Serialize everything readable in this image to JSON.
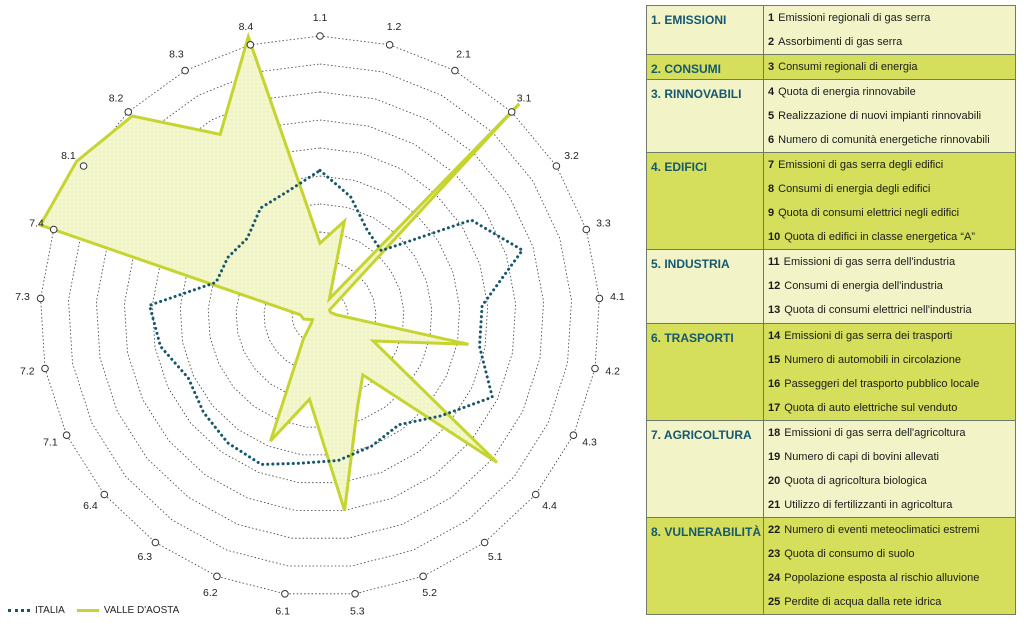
{
  "chart_data": {
    "type": "radar",
    "axes": [
      "1.1",
      "1.2",
      "2.1",
      "3.1",
      "3.2",
      "3.3",
      "4.1",
      "4.2",
      "4.3",
      "4.4",
      "5.1",
      "5.2",
      "5.3",
      "6.1",
      "6.2",
      "6.3",
      "6.4",
      "7.1",
      "7.2",
      "7.3",
      "7.4",
      "8.1",
      "8.2",
      "8.3",
      "8.4"
    ],
    "rings": 10,
    "series": [
      {
        "name": "ITALIA",
        "style": "dotted",
        "color": "#17566b",
        "values": [
          5.2,
          4.4,
          3.5,
          3.2,
          6.4,
          7.6,
          5.8,
          5.8,
          6.8,
          5.6,
          4.8,
          5.0,
          5.2,
          5.3,
          5.7,
          5.6,
          5.4,
          5.2,
          5.8,
          6.1,
          3.9,
          3.9,
          3.8,
          4.4,
          4.6
        ]
      },
      {
        "name": "VALLE D'AOSTA",
        "style": "solid",
        "color": "#c6d431",
        "values": [
          2.6,
          3.5,
          0.7,
          10.4,
          0.4,
          0.4,
          0.6,
          5.4,
          2.1,
          8.2,
          2.6,
          3.6,
          7.0,
          3.0,
          4.8,
          1.0,
          0.4,
          0.3,
          0.6,
          0.7,
          10.5,
          10.3,
          9.8,
          7.4,
          10.3
        ]
      }
    ]
  },
  "legend": {
    "italia": "ITALIA",
    "vda": "VALLE D'AOSTA"
  },
  "groups": [
    {
      "label": "1. EMISSIONI",
      "shade": "light",
      "items": [
        {
          "num": "1",
          "text": "Emissioni regionali di gas serra"
        },
        {
          "num": "2",
          "text": "Assorbimenti di gas serra"
        }
      ]
    },
    {
      "label": "2. CONSUMI",
      "shade": "dark",
      "items": [
        {
          "num": "3",
          "text": "Consumi regionali di energia"
        }
      ]
    },
    {
      "label": "3. RINNOVABILI",
      "shade": "light",
      "items": [
        {
          "num": "4",
          "text": "Quota di energia rinnovabile"
        },
        {
          "num": "5",
          "text": "Realizzazione di nuovi impianti rinnovabili"
        },
        {
          "num": "6",
          "text": "Numero di comunità energetiche rinnovabili"
        }
      ]
    },
    {
      "label": "4. EDIFICI",
      "shade": "dark",
      "items": [
        {
          "num": "7",
          "text": "Emissioni di gas serra degli edifici"
        },
        {
          "num": "8",
          "text": "Consumi di energia degli edifici"
        },
        {
          "num": "9",
          "text": "Quota di consumi elettrici negli edifici"
        },
        {
          "num": "10",
          "text": "Quota di edifici in classe energetica “A”"
        }
      ]
    },
    {
      "label": "5. INDUSTRIA",
      "shade": "light",
      "items": [
        {
          "num": "11",
          "text": "Emissioni di gas serra dell'industria"
        },
        {
          "num": "12",
          "text": "Consumi di energia dell'industria"
        },
        {
          "num": "13",
          "text": "Quota di consumi elettrici nell'industria"
        }
      ]
    },
    {
      "label": "6. TRASPORTI",
      "shade": "dark",
      "items": [
        {
          "num": "14",
          "text": "Emissioni di gas serra dei trasporti"
        },
        {
          "num": "15",
          "text": "Numero di automobili in circolazione"
        },
        {
          "num": "16",
          "text": "Passeggeri del trasporto pubblico locale"
        },
        {
          "num": "17",
          "text": "Quota di auto elettriche sul venduto"
        }
      ]
    },
    {
      "label": "7. AGRICOLTURA",
      "shade": "light",
      "items": [
        {
          "num": "18",
          "text": "Emissioni di gas serra dell'agricoltura"
        },
        {
          "num": "19",
          "text": "Numero di capi di bovini allevati"
        },
        {
          "num": "20",
          "text": "Quota di agricoltura biologica"
        },
        {
          "num": "21",
          "text": "Utilizzo di fertilizzanti in agricoltura"
        }
      ]
    },
    {
      "label": "8. VULNERABILITÀ",
      "shade": "dark",
      "items": [
        {
          "num": "22",
          "text": "Numero di eventi meteoclimatici estremi"
        },
        {
          "num": "23",
          "text": "Quota di consumo di suolo"
        },
        {
          "num": "24",
          "text": "Popolazione esposta al rischio alluvione"
        },
        {
          "num": "25",
          "text": "Perdite di acqua dalla rete idrica"
        }
      ]
    }
  ]
}
